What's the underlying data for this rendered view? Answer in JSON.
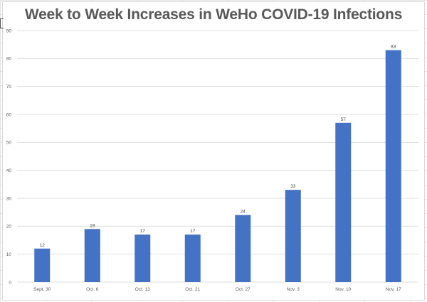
{
  "chart_data": {
    "type": "bar",
    "title": "Week to Week Increases in WeHo COVID-19 Infections",
    "categories": [
      "Sept. 30",
      "Oct. 6",
      "Oct. 13",
      "Oct. 21",
      "Oct. 27",
      "Nov. 3",
      "Nov. 10",
      "Nov. 17"
    ],
    "series": [
      {
        "values": [
          12,
          19,
          17,
          17,
          24,
          33,
          57,
          83
        ]
      }
    ],
    "data_labels": [
      "12",
      "19",
      "17",
      "17",
      "24",
      "33",
      "57",
      "83"
    ],
    "ylim": [
      0,
      90
    ],
    "yticks": [
      0,
      10,
      20,
      30,
      40,
      50,
      60,
      70,
      80,
      90
    ],
    "ytick_labels": [
      "0",
      "10",
      "20",
      "30",
      "40",
      "50",
      "60",
      "70",
      "80",
      "90"
    ],
    "xlabel": "",
    "ylabel": "",
    "grid": true,
    "legend": "none",
    "bar_color": "#4472C4",
    "gridline_color": "#d9d9d9"
  }
}
